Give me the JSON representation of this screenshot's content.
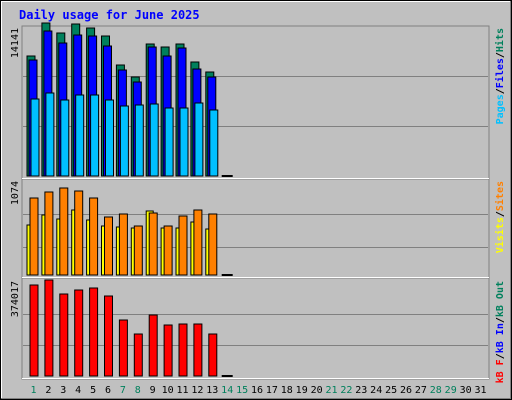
{
  "title": "Daily usage for June 2025",
  "colors": {
    "hits": "#00805c",
    "files": "#0000ff",
    "pages": "#00c0ff",
    "visits": "#ffff00",
    "sites": "#ff8000",
    "kb_in": "#0000ff",
    "kb_out": "#00805c",
    "kb_f": "#ff0000",
    "title": "#0000ff",
    "background": "#c0c0c0",
    "weekend_day": "#00805c",
    "weekday": "#000000",
    "gridline": "#808080"
  },
  "chart_data": [
    {
      "type": "bar",
      "panel": "top",
      "scale_label": "14141",
      "ylim": [
        0,
        14141
      ],
      "legend": [
        {
          "text": "Pages",
          "color": "#00c0ff"
        },
        {
          "text": "/",
          "color": "#000000"
        },
        {
          "text": "Files",
          "color": "#0000ff"
        },
        {
          "text": "/",
          "color": "#000000"
        },
        {
          "text": "Hits",
          "color": "#00805c"
        }
      ],
      "categories": [
        "1",
        "2",
        "3",
        "4",
        "5",
        "6",
        "7",
        "8",
        "9",
        "10",
        "11",
        "12",
        "13",
        "14",
        "15",
        "16",
        "17",
        "18",
        "19",
        "20",
        "21",
        "22",
        "23",
        "24",
        "25",
        "26",
        "27",
        "28",
        "29",
        "30",
        "31"
      ],
      "series": [
        {
          "name": "Hits",
          "values": [
            11500,
            14600,
            13700,
            14500,
            14100,
            13400,
            10600,
            9500,
            12600,
            12300,
            12600,
            10900,
            9900,
            0,
            null,
            null,
            null,
            null,
            null,
            null,
            null,
            null,
            null,
            null,
            null,
            null,
            null,
            null,
            null,
            null,
            null
          ]
        },
        {
          "name": "Files",
          "values": [
            11100,
            13900,
            12700,
            13500,
            13400,
            12400,
            10100,
            9000,
            12300,
            11500,
            12200,
            10200,
            9500,
            0,
            null,
            null,
            null,
            null,
            null,
            null,
            null,
            null,
            null,
            null,
            null,
            null,
            null,
            null,
            null,
            null,
            null
          ]
        },
        {
          "name": "Pages",
          "values": [
            7400,
            7900,
            7300,
            7700,
            7700,
            7300,
            6700,
            6800,
            6900,
            6500,
            6500,
            7000,
            6300,
            0,
            null,
            null,
            null,
            null,
            null,
            null,
            null,
            null,
            null,
            null,
            null,
            null,
            null,
            null,
            null,
            null,
            null
          ]
        }
      ]
    },
    {
      "type": "bar",
      "panel": "middle",
      "scale_label": "1074",
      "ylim": [
        0,
        1074
      ],
      "legend": [
        {
          "text": "Visits",
          "color": "#ffff00"
        },
        {
          "text": "/",
          "color": "#000000"
        },
        {
          "text": "Sites",
          "color": "#ff8000"
        }
      ],
      "categories": [
        "1",
        "2",
        "3",
        "4",
        "5",
        "6",
        "7",
        "8",
        "9",
        "10",
        "11",
        "12",
        "13",
        "14",
        "15",
        "16",
        "17",
        "18",
        "19",
        "20",
        "21",
        "22",
        "23",
        "24",
        "25",
        "26",
        "27",
        "28",
        "29",
        "30",
        "31"
      ],
      "series": [
        {
          "name": "Visits",
          "values": [
            570,
            680,
            640,
            740,
            630,
            560,
            550,
            540,
            730,
            540,
            540,
            600,
            530,
            0,
            null,
            null,
            null,
            null,
            null,
            null,
            null,
            null,
            null,
            null,
            null,
            null,
            null,
            null,
            null,
            null,
            null
          ]
        },
        {
          "name": "Sites",
          "values": [
            880,
            950,
            990,
            960,
            880,
            660,
            700,
            560,
            710,
            560,
            670,
            740,
            700,
            0,
            null,
            null,
            null,
            null,
            null,
            null,
            null,
            null,
            null,
            null,
            null,
            null,
            null,
            null,
            null,
            null,
            null
          ]
        }
      ]
    },
    {
      "type": "bar",
      "panel": "bottom",
      "scale_label": "374017",
      "ylim": [
        0,
        374017
      ],
      "legend": [
        {
          "text": "kB F",
          "color": "#ff0000"
        },
        {
          "text": "/",
          "color": "#000000"
        },
        {
          "text": "kB In",
          "color": "#0000ff"
        },
        {
          "text": "/",
          "color": "#000000"
        },
        {
          "text": "kB Out",
          "color": "#00805c"
        }
      ],
      "categories": [
        "1",
        "2",
        "3",
        "4",
        "5",
        "6",
        "7",
        "8",
        "9",
        "10",
        "11",
        "12",
        "13",
        "14",
        "15",
        "16",
        "17",
        "18",
        "19",
        "20",
        "21",
        "22",
        "23",
        "24",
        "25",
        "26",
        "27",
        "28",
        "29",
        "30",
        "31"
      ],
      "series": [
        {
          "name": "kB F",
          "values": [
            354000,
            374000,
            319000,
            337000,
            344000,
            312000,
            217000,
            165000,
            238000,
            200000,
            202000,
            202000,
            165000,
            0,
            null,
            null,
            null,
            null,
            null,
            null,
            null,
            null,
            null,
            null,
            null,
            null,
            null,
            null,
            null,
            null,
            null
          ]
        }
      ]
    }
  ],
  "x_axis": {
    "days": [
      {
        "label": "1",
        "weekend": true
      },
      {
        "label": "2",
        "weekend": false
      },
      {
        "label": "3",
        "weekend": false
      },
      {
        "label": "4",
        "weekend": false
      },
      {
        "label": "5",
        "weekend": false
      },
      {
        "label": "6",
        "weekend": false
      },
      {
        "label": "7",
        "weekend": true
      },
      {
        "label": "8",
        "weekend": true
      },
      {
        "label": "9",
        "weekend": false
      },
      {
        "label": "10",
        "weekend": false
      },
      {
        "label": "11",
        "weekend": false
      },
      {
        "label": "12",
        "weekend": false
      },
      {
        "label": "13",
        "weekend": false
      },
      {
        "label": "14",
        "weekend": true
      },
      {
        "label": "15",
        "weekend": true
      },
      {
        "label": "16",
        "weekend": false
      },
      {
        "label": "17",
        "weekend": false
      },
      {
        "label": "18",
        "weekend": false
      },
      {
        "label": "19",
        "weekend": false
      },
      {
        "label": "20",
        "weekend": false
      },
      {
        "label": "21",
        "weekend": true
      },
      {
        "label": "22",
        "weekend": true
      },
      {
        "label": "23",
        "weekend": false
      },
      {
        "label": "24",
        "weekend": false
      },
      {
        "label": "25",
        "weekend": false
      },
      {
        "label": "26",
        "weekend": false
      },
      {
        "label": "27",
        "weekend": false
      },
      {
        "label": "28",
        "weekend": true
      },
      {
        "label": "29",
        "weekend": true
      },
      {
        "label": "30",
        "weekend": false
      },
      {
        "label": "31",
        "weekend": false
      }
    ]
  }
}
